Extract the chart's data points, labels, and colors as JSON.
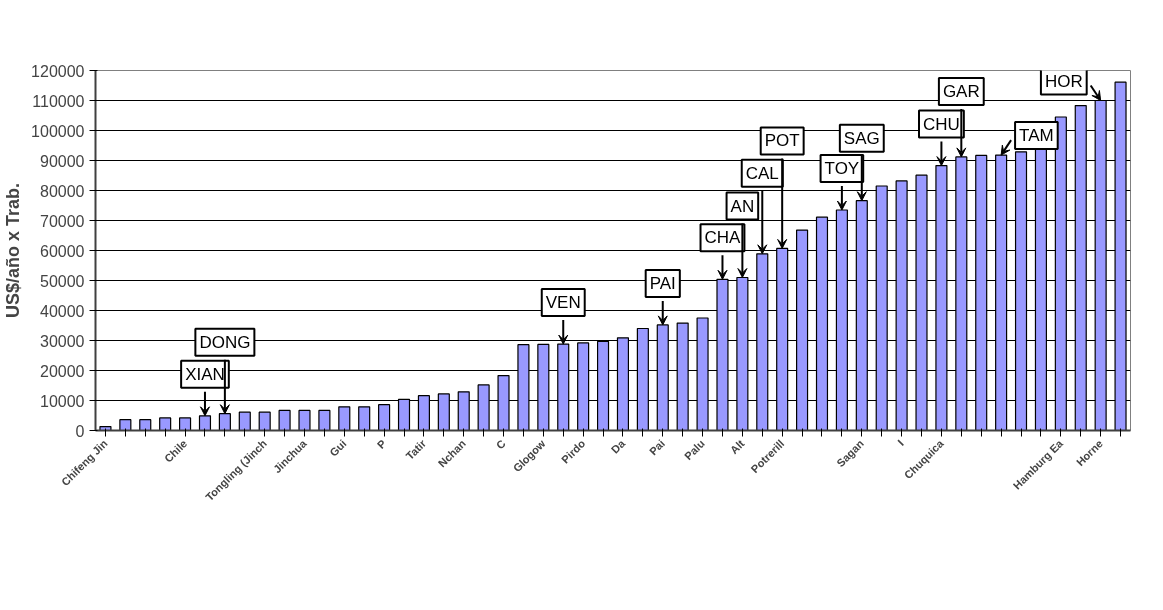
{
  "chart_data": {
    "type": "bar",
    "ylabel": "US$/año x Trab.",
    "categories": [
      "Chifeng Jin",
      null,
      null,
      null,
      "Chile",
      null,
      null,
      null,
      "Tongling (Jinch",
      null,
      "Jinchua",
      null,
      "Gui",
      null,
      "P",
      null,
      "Tatir",
      null,
      "Nchan",
      null,
      "C",
      null,
      "Glogow",
      null,
      "Pirdo",
      null,
      "Da",
      null,
      "Pai",
      null,
      "Palu",
      null,
      "Alt",
      null,
      "Potrerill",
      null,
      null,
      null,
      "Sagan",
      null,
      "I",
      null,
      "Chuquica",
      null,
      null,
      null,
      null,
      null,
      "Hamburg Ea",
      null,
      "Horne",
      null
    ],
    "values": [
      1300,
      3600,
      3600,
      4200,
      4200,
      4900,
      5600,
      6100,
      6100,
      6700,
      6700,
      6700,
      7900,
      7900,
      8600,
      10400,
      11600,
      12200,
      12900,
      15200,
      18300,
      28600,
      28700,
      28800,
      29200,
      29700,
      30900,
      34000,
      35200,
      35800,
      37500,
      50400,
      51000,
      58900,
      60700,
      66800,
      71100,
      73500,
      76600,
      81500,
      83200,
      85100,
      88300,
      91200,
      91700,
      91800,
      92900,
      94300,
      104500,
      108300,
      110000,
      116100
    ],
    "color": "#9999ff",
    "ylim": [
      0,
      120000
    ],
    "yticks": [
      0,
      10000,
      20000,
      30000,
      40000,
      50000,
      60000,
      70000,
      80000,
      90000,
      100000,
      110000,
      120000
    ],
    "grid": "y",
    "annotations": [
      {
        "text": "XIAN",
        "y": 4900
      },
      {
        "text": "DONG",
        "y": 5600
      },
      {
        "text": "VEN",
        "y": 28800
      },
      {
        "text": "PAI",
        "x": "Pai",
        "y": 35200
      },
      {
        "text": "CHA",
        "y": 50400
      },
      {
        "text": "AN",
        "x": "Alt",
        "y": 51000
      },
      {
        "text": "CAL",
        "y": 58900
      },
      {
        "text": "POT",
        "x": "Potrerill",
        "y": 60700
      },
      {
        "text": "TOY",
        "y": 73500
      },
      {
        "text": "SAG",
        "x": "Sagan",
        "y": 76600
      },
      {
        "text": "CHU",
        "x": "Chuquica",
        "y": 88300
      },
      {
        "text": "GAR",
        "y": 91200
      },
      {
        "text": "TAM",
        "y": 91800
      },
      {
        "text": "HOR",
        "x": "Horne",
        "y": 110000
      }
    ]
  }
}
